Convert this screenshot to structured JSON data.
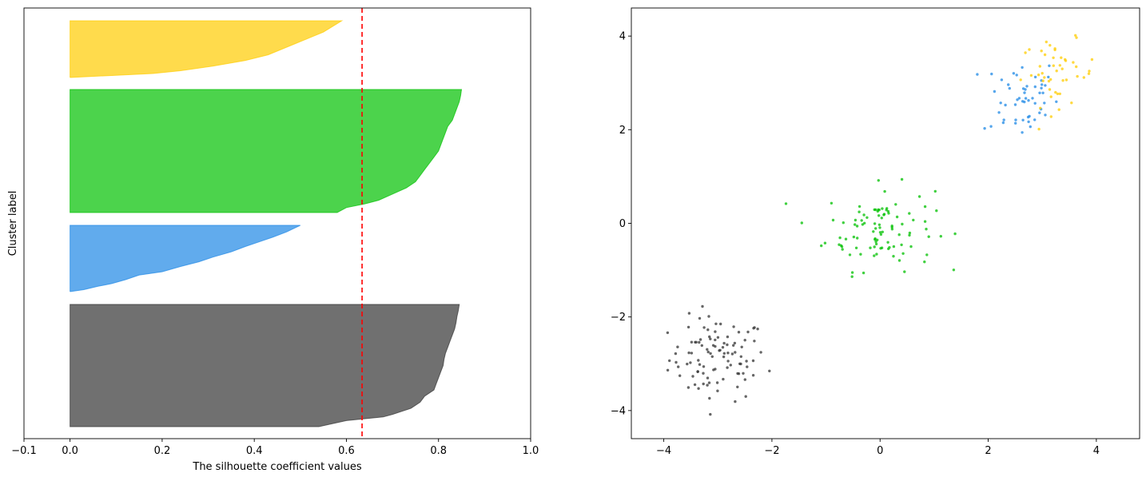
{
  "chart_data": [
    {
      "type": "area",
      "title": "",
      "xlabel": "The silhouette coefficient values",
      "ylabel": "Cluster label",
      "xlim": [
        -0.1,
        1.0
      ],
      "xticks": [
        -0.1,
        0.0,
        0.2,
        0.4,
        0.6,
        0.8,
        1.0
      ],
      "xtick_labels": [
        "−0.1",
        "0.0",
        "0.2",
        "0.4",
        "0.6",
        "0.8",
        "1.0"
      ],
      "yticks": [],
      "grid": false,
      "average_silhouette_score": 0.634,
      "average_line_color": "#ff0000",
      "series": [
        {
          "cluster": 0,
          "color": "#333333",
          "sample_count": 100,
          "sorted_silhouette_profile": [
            [
              0.0,
              0.54
            ],
            [
              0.05,
              0.6
            ],
            [
              0.08,
              0.68
            ],
            [
              0.1,
              0.7
            ],
            [
              0.15,
              0.74
            ],
            [
              0.2,
              0.76
            ],
            [
              0.25,
              0.77
            ],
            [
              0.3,
              0.79
            ],
            [
              0.35,
              0.795
            ],
            [
              0.4,
              0.8
            ],
            [
              0.45,
              0.805
            ],
            [
              0.5,
              0.81
            ],
            [
              0.55,
              0.812
            ],
            [
              0.6,
              0.815
            ],
            [
              0.65,
              0.82
            ],
            [
              0.7,
              0.825
            ],
            [
              0.75,
              0.83
            ],
            [
              0.8,
              0.835
            ],
            [
              0.85,
              0.838
            ],
            [
              0.9,
              0.84
            ],
            [
              0.95,
              0.843
            ],
            [
              1.0,
              0.845
            ]
          ]
        },
        {
          "cluster": 1,
          "color": "#1e88e5",
          "sample_count": 53,
          "sorted_silhouette_profile": [
            [
              0.0,
              0.0
            ],
            [
              0.03,
              0.03
            ],
            [
              0.08,
              0.06
            ],
            [
              0.12,
              0.09
            ],
            [
              0.18,
              0.12
            ],
            [
              0.25,
              0.15
            ],
            [
              0.3,
              0.2
            ],
            [
              0.38,
              0.24
            ],
            [
              0.45,
              0.28
            ],
            [
              0.52,
              0.31
            ],
            [
              0.6,
              0.35
            ],
            [
              0.68,
              0.38
            ],
            [
              0.75,
              0.41
            ],
            [
              0.82,
              0.44
            ],
            [
              0.9,
              0.47
            ],
            [
              1.0,
              0.5
            ]
          ]
        },
        {
          "cluster": 2,
          "color": "#00c000",
          "sample_count": 100,
          "sorted_silhouette_profile": [
            [
              0.0,
              0.58
            ],
            [
              0.04,
              0.6
            ],
            [
              0.07,
              0.64
            ],
            [
              0.1,
              0.67
            ],
            [
              0.15,
              0.7
            ],
            [
              0.2,
              0.73
            ],
            [
              0.25,
              0.75
            ],
            [
              0.3,
              0.76
            ],
            [
              0.35,
              0.77
            ],
            [
              0.4,
              0.78
            ],
            [
              0.45,
              0.79
            ],
            [
              0.5,
              0.8
            ],
            [
              0.55,
              0.805
            ],
            [
              0.6,
              0.81
            ],
            [
              0.65,
              0.815
            ],
            [
              0.7,
              0.82
            ],
            [
              0.75,
              0.83
            ],
            [
              0.8,
              0.835
            ],
            [
              0.85,
              0.84
            ],
            [
              0.9,
              0.845
            ],
            [
              0.95,
              0.848
            ],
            [
              1.0,
              0.85
            ]
          ]
        },
        {
          "cluster": 3,
          "color": "#ffcc00",
          "sample_count": 46,
          "sorted_silhouette_profile": [
            [
              0.0,
              0.0
            ],
            [
              0.04,
              0.1
            ],
            [
              0.07,
              0.18
            ],
            [
              0.12,
              0.24
            ],
            [
              0.2,
              0.31
            ],
            [
              0.3,
              0.38
            ],
            [
              0.4,
              0.43
            ],
            [
              0.5,
              0.46
            ],
            [
              0.6,
              0.49
            ],
            [
              0.7,
              0.52
            ],
            [
              0.8,
              0.55
            ],
            [
              0.9,
              0.57
            ],
            [
              1.0,
              0.59
            ]
          ]
        }
      ]
    },
    {
      "type": "scatter",
      "title": "",
      "xlabel": "",
      "ylabel": "",
      "xlim": [
        -4.6,
        4.8
      ],
      "ylim": [
        -4.6,
        4.6
      ],
      "xticks": [
        -4,
        -2,
        0,
        2,
        4
      ],
      "xtick_labels": [
        "−4",
        "−2",
        "0",
        "2",
        "4"
      ],
      "yticks": [
        -4,
        -2,
        0,
        2,
        4
      ],
      "ytick_labels": [
        "−4",
        "−2",
        "0",
        "2",
        "4"
      ],
      "grid": false,
      "series": [
        {
          "cluster": 0,
          "color": "#333333",
          "center": [
            -3.0,
            -2.9
          ],
          "spread": [
            0.45,
            0.45
          ],
          "count": 100
        },
        {
          "cluster": 1,
          "color": "#1e88e5",
          "center": [
            2.6,
            2.7
          ],
          "spread": [
            0.35,
            0.45
          ],
          "count": 53
        },
        {
          "cluster": 2,
          "color": "#00c000",
          "center": [
            0.0,
            -0.1
          ],
          "spread": [
            0.5,
            0.45
          ],
          "count": 100
        },
        {
          "cluster": 3,
          "color": "#ffcc00",
          "center": [
            3.3,
            3.2
          ],
          "spread": [
            0.35,
            0.35
          ],
          "count": 46
        }
      ]
    }
  ]
}
